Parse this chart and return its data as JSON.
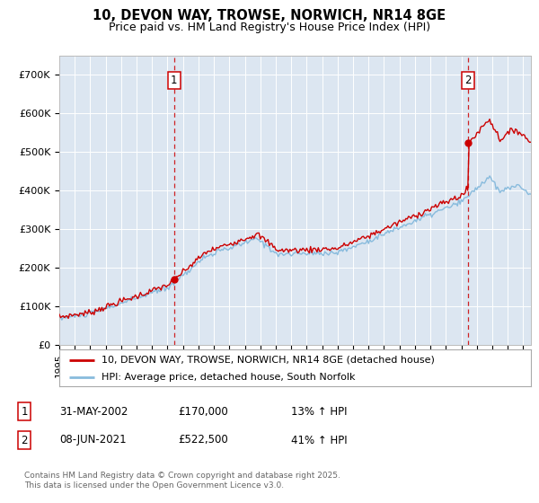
{
  "title_line1": "10, DEVON WAY, TROWSE, NORWICH, NR14 8GE",
  "title_line2": "Price paid vs. HM Land Registry's House Price Index (HPI)",
  "background_color": "#dce6f1",
  "fig_bg_color": "#ffffff",
  "hpi_color": "#88bbdd",
  "price_color": "#cc0000",
  "dashed_color": "#cc0000",
  "ylim": [
    0,
    750000
  ],
  "yticks": [
    0,
    100000,
    200000,
    300000,
    400000,
    500000,
    600000,
    700000
  ],
  "ytick_labels": [
    "£0",
    "£100K",
    "£200K",
    "£300K",
    "£400K",
    "£500K",
    "£600K",
    "£700K"
  ],
  "sale1_date": "31-MAY-2002",
  "sale1_price": 170000,
  "sale1_pct": "13%",
  "sale1_x": 2002.42,
  "sale2_date": "08-JUN-2021",
  "sale2_price": 522500,
  "sale2_pct": "41%",
  "sale2_x": 2021.44,
  "legend_line1": "10, DEVON WAY, TROWSE, NORWICH, NR14 8GE (detached house)",
  "legend_line2": "HPI: Average price, detached house, South Norfolk",
  "footnote": "Contains HM Land Registry data © Crown copyright and database right 2025.\nThis data is licensed under the Open Government Licence v3.0.",
  "xmin": 1995.0,
  "xmax": 2025.5
}
